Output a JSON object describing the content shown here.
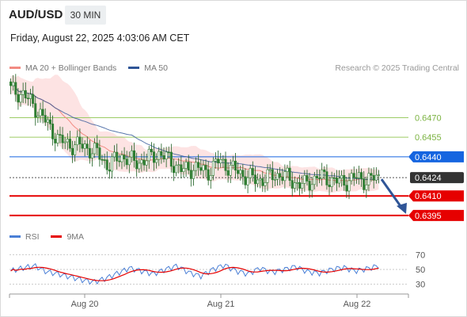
{
  "header": {
    "symbol": "AUD/USD",
    "timeframe": "30 MIN",
    "timestamp": "Friday, August 22, 2025 4:03:06 AM CET",
    "credit": "Research © 2025 Trading Central"
  },
  "legend": {
    "ma20": {
      "label": "MA 20 + Bollinger Bands",
      "color": "#f28b82"
    },
    "ma50": {
      "label": "MA 50",
      "color": "#2f5597"
    }
  },
  "rsi_legend": {
    "rsi": {
      "label": "RSI",
      "color": "#4a7fd6"
    },
    "ma9": {
      "label": "9MA",
      "color": "#e60000"
    }
  },
  "chart_data": [
    {
      "type": "candlestick",
      "title": "AUD/USD 30 MIN",
      "x_ticks": [
        "Aug 20",
        "Aug 21",
        "Aug 22"
      ],
      "ylim": [
        0.6384,
        0.6497
      ],
      "bars_approx": 150,
      "close_series_approx": [
        0.6491,
        0.6488,
        0.6478,
        0.6465,
        0.6452,
        0.6449,
        0.6448,
        0.6443,
        0.6433,
        0.6441,
        0.6436,
        0.6437,
        0.6443,
        0.6437,
        0.6429,
        0.6432,
        0.6428,
        0.6437,
        0.6431,
        0.6426,
        0.6422,
        0.6424,
        0.6427,
        0.6421,
        0.6418,
        0.6425,
        0.6423,
        0.642,
        0.6424,
        0.6422,
        0.6424
      ],
      "current_price": 0.6424,
      "levels": [
        {
          "value": 0.647,
          "label": "0.6470",
          "kind": "resistance",
          "color": "#9ccc65"
        },
        {
          "value": 0.6455,
          "label": "0.6455",
          "kind": "resistance",
          "color": "#9ccc65"
        },
        {
          "value": 0.644,
          "label": "0.6440",
          "kind": "pivot",
          "color": "#1565e0"
        },
        {
          "value": 0.6424,
          "label": "0.6424",
          "kind": "last",
          "color": "#333333"
        },
        {
          "value": 0.641,
          "label": "0.6410",
          "kind": "support",
          "color": "#e60000"
        },
        {
          "value": 0.6395,
          "label": "0.6395",
          "kind": "support",
          "color": "#e60000"
        }
      ],
      "forecast_arrow": {
        "from": 0.6424,
        "to": 0.6395,
        "color": "#2f5597"
      }
    },
    {
      "type": "line",
      "title": "RSI",
      "ylim": [
        20,
        80
      ],
      "y_ticks": [
        70,
        50,
        30
      ],
      "series": [
        {
          "name": "RSI",
          "color": "#4a7fd6"
        },
        {
          "name": "9MA",
          "color": "#e60000"
        }
      ],
      "rsi_approx": [
        48,
        52,
        55,
        47,
        44,
        40,
        36,
        33,
        38,
        45,
        52,
        48,
        44,
        50,
        55,
        46,
        41,
        50,
        56,
        48,
        44,
        52,
        46,
        50,
        54,
        47,
        45,
        50,
        53,
        48,
        51,
        55
      ]
    }
  ]
}
